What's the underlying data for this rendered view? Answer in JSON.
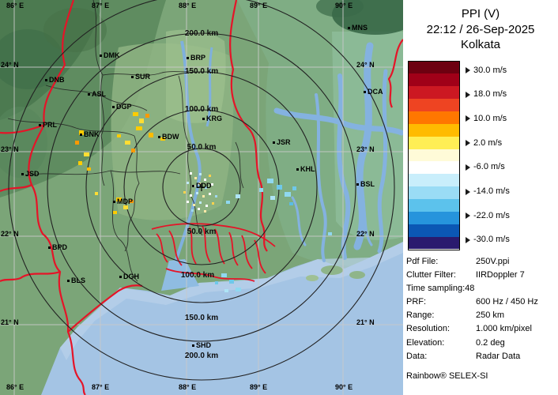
{
  "panel": {
    "title": "PPI (V)",
    "datetime": "22:12 / 26-Sep-2025",
    "station": "Kolkata",
    "colorbar": {
      "labels": [
        "30.0 m/s",
        "18.0 m/s",
        "10.0 m/s",
        "2.0 m/s",
        "-6.0 m/s",
        "-14.0 m/s",
        "-22.0 m/s",
        "-30.0 m/s"
      ],
      "colors": [
        "#6d0010",
        "#a00018",
        "#cc1822",
        "#ee4422",
        "#ff7700",
        "#ffbb00",
        "#ffee55",
        "#fffbd8",
        "#ffffff",
        "#c9eefb",
        "#9adcf5",
        "#5cc2ec",
        "#2694dc",
        "#0b57b4",
        "#2a1a6e"
      ]
    },
    "info": [
      {
        "label": "Pdf File:",
        "value": "250V.ppi"
      },
      {
        "label": "Clutter Filter:",
        "value": "IIRDoppler 7"
      },
      {
        "label": "Time sampling:48",
        "value": ""
      },
      {
        "label": "PRF:",
        "value": "600 Hz / 450 Hz"
      },
      {
        "label": "Range:",
        "value": "250 km"
      },
      {
        "label": "Resolution:",
        "value": "1.000 km/pixel"
      },
      {
        "label": "Elevation:",
        "value": "0.2 deg"
      },
      {
        "label": "Data:",
        "value": "Radar Data"
      }
    ],
    "footer": "Rainbow® SELEX-SI"
  },
  "map": {
    "lon_labels": [
      "86° E",
      "87° E",
      "88° E",
      "89° E",
      "90° E"
    ],
    "lat_labels": [
      "24° N",
      "23° N",
      "22° N",
      "21° N"
    ],
    "ring_labels": [
      "200.0 km",
      "150.0 km",
      "100.0 km",
      "50.0 km",
      "50.0 km",
      "100.0 km",
      "150.0 km",
      "200.0 km"
    ],
    "stations": [
      "MNS",
      "DMK",
      "BRP",
      "SUR",
      "DNB",
      "ASL",
      "DGP",
      "KRG",
      "DCA",
      "PRL",
      "BNK",
      "BDW",
      "JSR",
      "KHL",
      "BSL",
      "JSD",
      "DDD",
      "MDP",
      "BPD",
      "BLS",
      "DGH",
      "SHD"
    ]
  }
}
